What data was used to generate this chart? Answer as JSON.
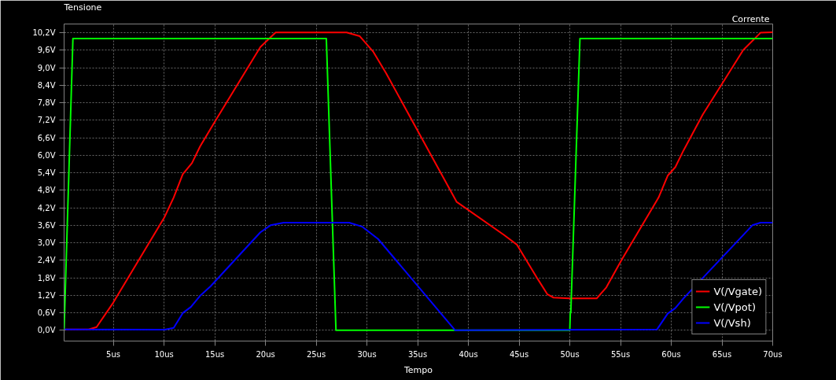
{
  "chart_data": {
    "type": "line",
    "xlabel": "Tempo",
    "ylabel": "Tensione",
    "y2label": "Corrente",
    "xlim": [
      0.15,
      70
    ],
    "ylim": [
      -0.37,
      10.5
    ],
    "xticks": [
      {
        "value": 5,
        "label": "5us"
      },
      {
        "value": 10,
        "label": "10us"
      },
      {
        "value": 15,
        "label": "15us"
      },
      {
        "value": 20,
        "label": "20us"
      },
      {
        "value": 25,
        "label": "25us"
      },
      {
        "value": 30,
        "label": "30us"
      },
      {
        "value": 35,
        "label": "35us"
      },
      {
        "value": 40,
        "label": "40us"
      },
      {
        "value": 45,
        "label": "45us"
      },
      {
        "value": 50,
        "label": "50us"
      },
      {
        "value": 55,
        "label": "55us"
      },
      {
        "value": 60,
        "label": "60us"
      },
      {
        "value": 65,
        "label": "65us"
      },
      {
        "value": 70,
        "label": "70us"
      }
    ],
    "yticks": [
      {
        "value": 0,
        "label": "0,0V"
      },
      {
        "value": 0.6,
        "label": "0,6V"
      },
      {
        "value": 1.2,
        "label": "1,2V"
      },
      {
        "value": 1.8,
        "label": "1,8V"
      },
      {
        "value": 2.4,
        "label": "2,4V"
      },
      {
        "value": 3.0,
        "label": "3,0V"
      },
      {
        "value": 3.6,
        "label": "3,6V"
      },
      {
        "value": 4.2,
        "label": "4,2V"
      },
      {
        "value": 4.8,
        "label": "4,8V"
      },
      {
        "value": 5.4,
        "label": "5,4V"
      },
      {
        "value": 6.0,
        "label": "6,0V"
      },
      {
        "value": 6.6,
        "label": "6,6V"
      },
      {
        "value": 7.2,
        "label": "7,2V"
      },
      {
        "value": 7.8,
        "label": "7,8V"
      },
      {
        "value": 8.4,
        "label": "8,4V"
      },
      {
        "value": 9.0,
        "label": "9,0V"
      },
      {
        "value": 9.6,
        "label": "9,6V"
      },
      {
        "value": 10.2,
        "label": "10,2V"
      }
    ],
    "grid": true,
    "legend": "bottom right",
    "marker": "none",
    "line_style": "solid",
    "series": [
      {
        "name": "V(/Vgate)",
        "color": "#ff0000",
        "x": [
          0.15,
          2.57,
          3.35,
          5.0,
          10.05,
          10.95,
          11.85,
          12.75,
          13.55,
          15.1,
          19.5,
          21.0,
          28.0,
          29.3,
          30.6,
          31.9,
          38.85,
          43.5,
          44.8,
          46.85,
          47.8,
          48.4,
          49.95,
          52.65,
          53.6,
          55.1,
          58.75,
          59.65,
          60.4,
          61.2,
          63.1,
          67.1,
          68.8,
          70.0
        ],
        "values": [
          0.03,
          0.03,
          0.11,
          0.95,
          3.88,
          4.55,
          5.35,
          5.73,
          6.3,
          7.2,
          9.71,
          10.21,
          10.21,
          10.08,
          9.56,
          8.81,
          4.4,
          3.27,
          2.93,
          1.75,
          1.23,
          1.12,
          1.09,
          1.09,
          1.47,
          2.41,
          4.55,
          5.3,
          5.59,
          6.16,
          7.39,
          9.61,
          10.2,
          10.22
        ]
      },
      {
        "name": "V(/Vpot)",
        "color": "#00ff00",
        "x": [
          0.15,
          1.02,
          26.0,
          26.95,
          50.0,
          50.05,
          50.1,
          51.0,
          70.0
        ],
        "values": [
          0.0,
          10.0,
          10.0,
          0.0,
          0.0,
          0.6,
          0.6,
          10.0,
          10.0
        ]
      },
      {
        "name": "V(/Vsh)",
        "color": "#0000ff",
        "x": [
          0.15,
          10.05,
          10.95,
          11.85,
          12.65,
          13.55,
          14.6,
          19.5,
          20.5,
          21.8,
          28.25,
          29.55,
          31.1,
          38.7,
          58.6,
          59.65,
          60.4,
          61.2,
          68.0,
          68.8,
          70.0
        ],
        "values": [
          0.03,
          0.02,
          0.08,
          0.59,
          0.8,
          1.18,
          1.51,
          3.36,
          3.6,
          3.69,
          3.69,
          3.55,
          3.13,
          0.0,
          0.03,
          0.57,
          0.76,
          1.09,
          3.6,
          3.69,
          3.69
        ]
      }
    ]
  }
}
